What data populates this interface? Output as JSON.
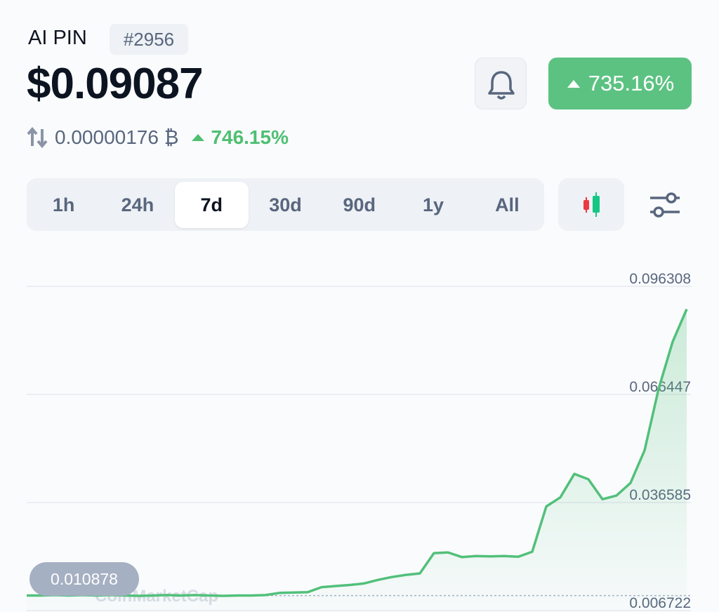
{
  "header": {
    "name": "AI PIN",
    "rank": "#2956",
    "price": "$0.09087",
    "change": "735.16%",
    "btc_price": "0.00000176 ₿",
    "btc_change": "746.15%"
  },
  "timeframes": {
    "options": [
      "1h",
      "24h",
      "7d",
      "30d",
      "90d",
      "1y",
      "All"
    ],
    "selected": "7d"
  },
  "chart_data": {
    "type": "line",
    "color": "#52c07a",
    "values": [
      0.0109,
      0.0109,
      0.011,
      0.0109,
      0.011,
      0.0109,
      0.011,
      0.0109,
      0.0108,
      0.0109,
      0.011,
      0.0109,
      0.011,
      0.0109,
      0.0108,
      0.0109,
      0.0109,
      0.011,
      0.0116,
      0.0117,
      0.0118,
      0.0132,
      0.0135,
      0.0138,
      0.0142,
      0.0152,
      0.016,
      0.0166,
      0.017,
      0.0226,
      0.0228,
      0.0215,
      0.0218,
      0.0217,
      0.0218,
      0.0216,
      0.023,
      0.0355,
      0.038,
      0.0445,
      0.043,
      0.0375,
      0.0385,
      0.042,
      0.051,
      0.068,
      0.081,
      0.09
    ],
    "ylim": [
      0.006722,
      0.096308
    ],
    "yticks": [
      0.096308,
      0.066447,
      0.036585,
      0.006722
    ],
    "grid": true,
    "reference": 0.010878,
    "watermark": "CoinMarketCap"
  }
}
